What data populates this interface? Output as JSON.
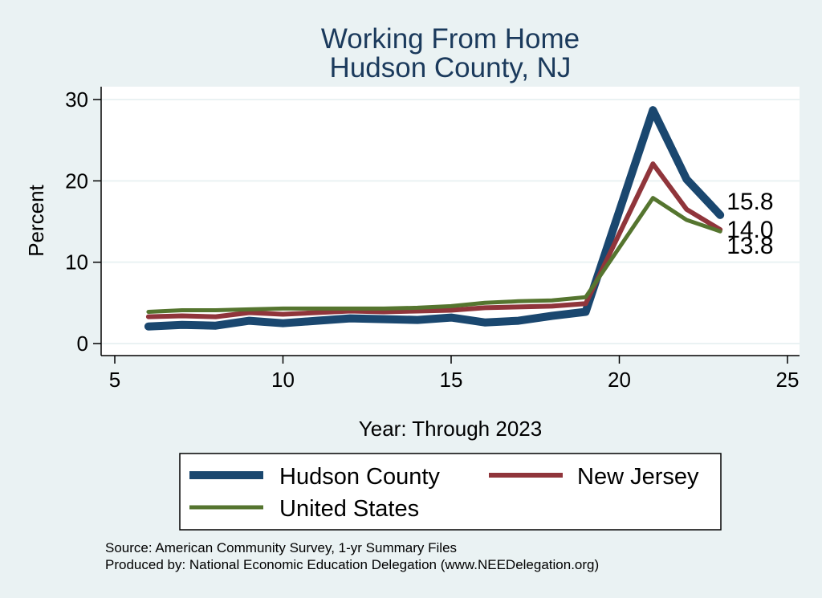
{
  "chart_data": {
    "type": "line",
    "title": "Working From Home",
    "subtitle": "Hudson County, NJ",
    "xlabel": "Year: Through 2023",
    "ylabel": "Percent",
    "xlim": [
      5,
      25
    ],
    "ylim": [
      0,
      30
    ],
    "xticks": [
      5,
      10,
      15,
      20,
      25
    ],
    "yticks": [
      0,
      10,
      20,
      30
    ],
    "grid": true,
    "legend_position": "bottom",
    "x": [
      6,
      7,
      8,
      9,
      10,
      11,
      12,
      13,
      14,
      15,
      16,
      17,
      18,
      19,
      21,
      22,
      23
    ],
    "series": [
      {
        "name": "Hudson County",
        "color": "#1a476f",
        "values": [
          2.1,
          2.3,
          2.2,
          2.8,
          2.5,
          2.8,
          3.1,
          3.0,
          2.9,
          3.2,
          2.6,
          2.8,
          3.4,
          3.9,
          28.7,
          20.2,
          15.8
        ],
        "end_label": "15.8"
      },
      {
        "name": "New Jersey",
        "color": "#90353b",
        "values": [
          3.3,
          3.4,
          3.3,
          3.8,
          3.6,
          3.8,
          4.0,
          3.9,
          4.0,
          4.1,
          4.4,
          4.5,
          4.6,
          4.9,
          22.1,
          16.5,
          14.0
        ],
        "end_label": "14.0"
      },
      {
        "name": "United States",
        "color": "#55752f",
        "values": [
          3.9,
          4.1,
          4.1,
          4.2,
          4.3,
          4.3,
          4.3,
          4.3,
          4.4,
          4.6,
          5.0,
          5.2,
          5.3,
          5.7,
          17.9,
          15.2,
          13.8
        ],
        "end_label": "13.8"
      }
    ]
  },
  "notes": {
    "source": "Source: American Community Survey, 1-yr Summary Files",
    "producer": "Produced by: National Economic Education Delegation (www.NEEDelegation.org)"
  }
}
